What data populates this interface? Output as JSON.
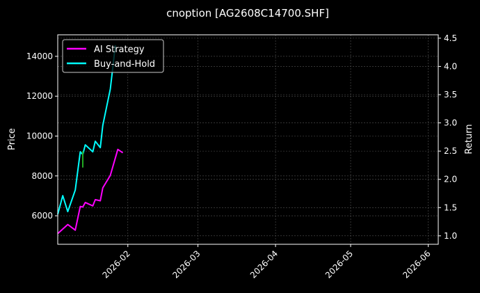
{
  "chart_data": {
    "type": "line",
    "title": "cnoption [AG2608C14700.SHF]",
    "ylabel": "Price",
    "y2label": "Return",
    "xlim": [
      "2026-01-04",
      "2026-06-05"
    ],
    "ylim": [
      4570,
      15080
    ],
    "y2lim": [
      0.85,
      4.56
    ],
    "x_ticks": [
      "2026-02-01",
      "2026-03-01",
      "2026-04-01",
      "2026-05-01",
      "2026-06-01"
    ],
    "x_tick_labels": [
      "2026-02",
      "2026-03",
      "2026-04",
      "2026-05",
      "2026-06"
    ],
    "y_ticks": [
      6000,
      8000,
      10000,
      12000,
      14000
    ],
    "y2_ticks": [
      1.0,
      1.5,
      2.0,
      2.5,
      3.0,
      3.5,
      4.0,
      4.5
    ],
    "y2_tick_labels": [
      "1.0",
      "1.5",
      "2.0",
      "2.5",
      "3.0",
      "3.5",
      "4.0",
      "4.5"
    ],
    "grid": true,
    "background": "#000000",
    "legend_position": "top-left",
    "series": [
      {
        "name": "AI Strategy",
        "axis": "right",
        "color": "#ff00ff",
        "x": [
          "2026-01-04",
          "2026-01-08",
          "2026-01-11",
          "2026-01-13",
          "2026-01-14",
          "2026-01-15",
          "2026-01-18",
          "2026-01-19",
          "2026-01-21",
          "2026-01-22",
          "2026-01-25",
          "2026-01-28",
          "2026-01-30"
        ],
        "values": [
          1.04,
          1.2,
          1.1,
          1.52,
          1.51,
          1.59,
          1.53,
          1.64,
          1.62,
          1.85,
          2.07,
          2.53,
          2.47
        ]
      },
      {
        "name": "Buy-and-Hold",
        "axis": "left",
        "color": "#00ffff",
        "x": [
          "2026-01-04",
          "2026-01-06",
          "2026-01-08",
          "2026-01-11",
          "2026-01-13",
          "2026-01-14",
          "2026-01-15",
          "2026-01-18",
          "2026-01-19",
          "2026-01-21",
          "2026-01-22",
          "2026-01-25",
          "2026-01-26",
          "2026-01-27"
        ],
        "values": [
          6070,
          7010,
          6210,
          7290,
          9210,
          9070,
          9560,
          9210,
          9740,
          9420,
          10540,
          12360,
          13440,
          14560
        ]
      }
    ],
    "marker": {
      "color": "#22aa22",
      "x": "2026-01-14",
      "values": [
        9240,
        8420
      ]
    }
  }
}
